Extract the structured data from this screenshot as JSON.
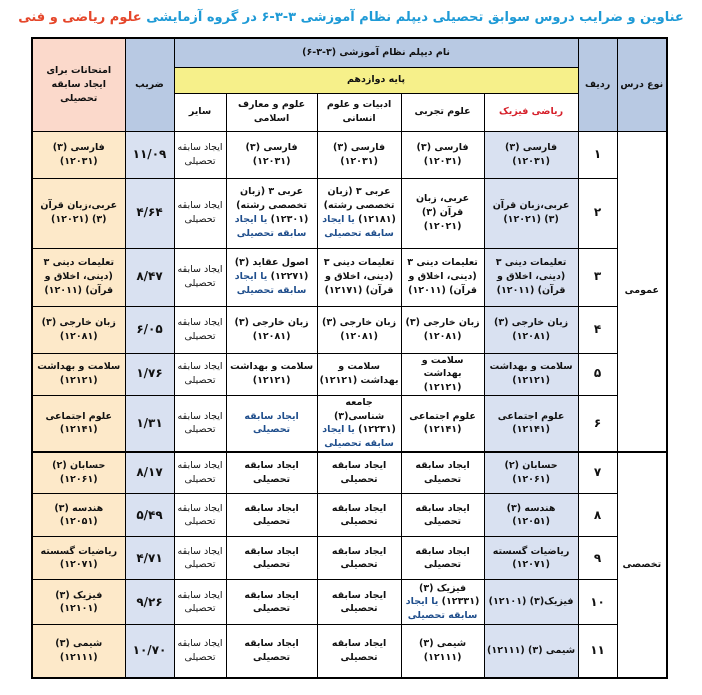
{
  "title": {
    "main": "عناوین و ضرایب دروس سوابق تحصیلی دیپلم نظام آموزشی ۳-۳-۶ در گروه آزمایشی",
    "accent": "علوم ریاضی و فنی"
  },
  "colors": {
    "title": "#1e9ad6",
    "accent": "#e5462a",
    "header": "#b8c9e3",
    "grade_row": "#f6f08a",
    "math_column": "#d9e1f1",
    "exam_column": "#fde9c9"
  },
  "header": {
    "course_type": "نوع درس",
    "row": "ردیف",
    "diploma": "نام دیپلم نظام  آموزشی (۳-۳-۶)",
    "grade": "پایه دوازدهم",
    "coefficient": "ضریب",
    "exams": "امتحانات برای ایجاد سابقه تحصیلی",
    "fields": [
      "ریاضی فیزیک",
      "علوم تجربی",
      "ادبیات و علوم انسانی",
      "علوم و معارف اسلامی",
      "سایر"
    ]
  },
  "groups": [
    {
      "label": "عمومی",
      "rows": 6
    },
    {
      "label": "تخصصی",
      "rows": 5
    }
  ],
  "rows": [
    {
      "n": "۱",
      "cells": [
        {
          "t": "فارسی (۳) (۱۲۰۳۱)"
        },
        {
          "t": "فارسی (۳) (۱۲۰۳۱)"
        },
        {
          "t": "فارسی (۳) (۱۲۰۳۱)"
        },
        {
          "t": "فارسی (۳) (۱۲۰۳۱)"
        },
        {
          "t": "ایجاد سابقه تحصیلی"
        }
      ],
      "coef": "۱۱/۰۹",
      "exam": "فارسی (۳) (۱۲۰۳۱)"
    },
    {
      "n": "۲",
      "cells": [
        {
          "t": "عربی،زبان قرآن (۳) (۱۲۰۲۱)"
        },
        {
          "t": "عربی، زبان قرآن (۳) (۱۲۰۲۱)"
        },
        {
          "t": "عربی ۳ (زبان تخصصی رشته)(۱۲۱۸۱)",
          "l": "یا ایجاد سابقه تحصیلی"
        },
        {
          "t": "عربی ۳ (زبان تخصصی رشته) (۱۲۳۰۱)",
          "l": "یا ایجاد سابقه تحصیلی"
        },
        {
          "t": "ایجاد سابقه تحصیلی"
        }
      ],
      "coef": "۴/۶۴",
      "exam": "عربی،زبان قرآن (۳) (۱۲۰۲۱)"
    },
    {
      "n": "۳",
      "cells": [
        {
          "t": "تعلیمات دینی ۳ (دینی، اخلاق و قرآن) (۱۲۰۱۱)"
        },
        {
          "t": "تعلیمات دینی ۳ (دینی، اخلاق و قرآن) (۱۲۰۱۱)"
        },
        {
          "t": "تعلیمات دینی ۳ (دینی، اخلاق و قرآن) (۱۲۱۷۱)"
        },
        {
          "t": "اصول عقاید (۳) (۱۲۲۷۱)",
          "l": "یا ایجاد سابقه تحصیلی"
        },
        {
          "t": "ایجاد سابقه تحصیلی"
        }
      ],
      "coef": "۸/۴۷",
      "exam": "تعلیمات دینی ۳ (دینی، اخلاق و قرآن) (۱۲۰۱۱)"
    },
    {
      "n": "۴",
      "cells": [
        {
          "t": "زبان خارجی (۳) (۱۲۰۸۱)"
        },
        {
          "t": "زبان خارجی (۳) (۱۲۰۸۱)"
        },
        {
          "t": "زبان خارجی (۳) (۱۲۰۸۱)"
        },
        {
          "t": "زبان خارجی (۳) (۱۲۰۸۱)"
        },
        {
          "t": "ایجاد سابقه تحصیلی"
        }
      ],
      "coef": "۶/۰۵",
      "exam": "زبان خارجی (۳) (۱۲۰۸۱)"
    },
    {
      "n": "۵",
      "cells": [
        {
          "t": "سلامت و بهداشت (۱۲۱۲۱)"
        },
        {
          "t": "سلامت و بهداشت (۱۲۱۲۱)"
        },
        {
          "t": "سلامت و بهداشت (۱۲۱۲۱)"
        },
        {
          "t": "سلامت و بهداشت (۱۲۱۲۱)"
        },
        {
          "t": "ایجاد سابقه تحصیلی"
        }
      ],
      "coef": "۱/۷۶",
      "exam": "سلامت و بهداشت (۱۲۱۲۱)"
    },
    {
      "n": "۶",
      "cells": [
        {
          "t": "علوم اجتماعی (۱۲۱۴۱)"
        },
        {
          "t": "علوم اجتماعی (۱۲۱۴۱)"
        },
        {
          "t": "جامعه شناسی(۳) (۱۲۲۳۱)",
          "l": "یا ایجاد سابقه تحصیلی"
        },
        {
          "t": "",
          "l": "ایجاد سابقه تحصیلی"
        },
        {
          "t": "ایجاد سابقه تحصیلی"
        }
      ],
      "coef": "۱/۳۱",
      "exam": "علوم اجتماعی (۱۲۱۴۱)"
    },
    {
      "n": "۷",
      "cells": [
        {
          "t": "حسابان (۲) (۱۲۰۶۱)"
        },
        {
          "t": "ایجاد سابقه تحصیلی"
        },
        {
          "t": "ایجاد سابقه تحصیلی"
        },
        {
          "t": "ایجاد سابقه تحصیلی"
        },
        {
          "t": "ایجاد سابقه تحصیلی"
        }
      ],
      "coef": "۸/۱۷",
      "exam": "حسابان (۲) (۱۲۰۶۱)"
    },
    {
      "n": "۸",
      "cells": [
        {
          "t": "هندسه (۳) (۱۲۰۵۱)"
        },
        {
          "t": "ایجاد سابقه تحصیلی"
        },
        {
          "t": "ایجاد سابقه تحصیلی"
        },
        {
          "t": "ایجاد سابقه تحصیلی"
        },
        {
          "t": "ایجاد سابقه تحصیلی"
        }
      ],
      "coef": "۵/۴۹",
      "exam": "هندسه (۳) (۱۲۰۵۱)"
    },
    {
      "n": "۹",
      "cells": [
        {
          "t": "ریاضیات گسسته (۱۲۰۷۱)"
        },
        {
          "t": "ایجاد سابقه تحصیلی"
        },
        {
          "t": "ایجاد سابقه تحصیلی"
        },
        {
          "t": "ایجاد سابقه تحصیلی"
        },
        {
          "t": "ایجاد سابقه تحصیلی"
        }
      ],
      "coef": "۴/۷۱",
      "exam": "ریاضیات گسسته (۱۲۰۷۱)"
    },
    {
      "n": "۱۰",
      "cells": [
        {
          "t": "فیزیک(۳) (۱۲۱۰۱)"
        },
        {
          "t": "فیزیک (۳) (۱۲۳۳۱)",
          "l": "یا ایجاد سابقه تحصیلی"
        },
        {
          "t": "ایجاد سابقه تحصیلی"
        },
        {
          "t": "ایجاد سابقه تحصیلی"
        },
        {
          "t": "ایجاد سابقه تحصیلی"
        }
      ],
      "coef": "۹/۲۶",
      "exam": "فیزیک (۳) (۱۲۱۰۱)"
    },
    {
      "n": "۱۱",
      "cells": [
        {
          "t": "شیمی (۳) (۱۲۱۱۱)"
        },
        {
          "t": "شیمی (۳) (۱۲۱۱۱)"
        },
        {
          "t": "ایجاد سابقه تحصیلی"
        },
        {
          "t": "ایجاد سابقه تحصیلی"
        },
        {
          "t": "ایجاد سابقه تحصیلی"
        }
      ],
      "coef": "۱۰/۷۰",
      "exam": "شیمی (۳) (۱۲۱۱۱)"
    }
  ]
}
